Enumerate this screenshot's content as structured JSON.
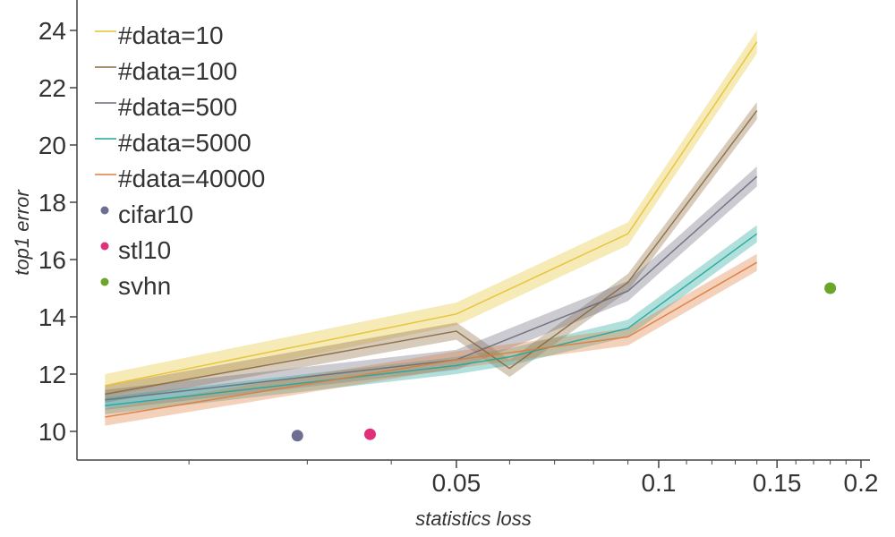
{
  "chart_data": {
    "type": "line",
    "xlabel": "statistics loss",
    "ylabel": "top1 error",
    "x_scale": "log",
    "xlim": [
      0.0135,
      0.21
    ],
    "ylim": [
      9.1,
      25
    ],
    "x_ticks": [
      {
        "value": 0.05,
        "label": "0.05"
      },
      {
        "value": 0.1,
        "label": "0.1"
      },
      {
        "value": 0.15,
        "label": "0.15"
      },
      {
        "value": 0.2,
        "label": "0.2"
      }
    ],
    "x_minor_ticks": [
      0.02,
      0.03,
      0.04,
      0.06,
      0.07,
      0.08,
      0.09,
      0.11,
      0.12,
      0.13,
      0.14,
      0.16,
      0.17,
      0.18,
      0.19
    ],
    "y_ticks": [
      {
        "value": 10,
        "label": "10"
      },
      {
        "value": 12,
        "label": "12"
      },
      {
        "value": 14,
        "label": "14"
      },
      {
        "value": 16,
        "label": "16"
      },
      {
        "value": 18,
        "label": "18"
      },
      {
        "value": 20,
        "label": "20"
      },
      {
        "value": 22,
        "label": "22"
      },
      {
        "value": 24,
        "label": "24"
      }
    ],
    "x": [
      0.015,
      0.05,
      0.06,
      0.09,
      0.14
    ],
    "series": [
      {
        "name": "#data=10",
        "color": "#e5c230",
        "values": [
          11.6,
          14.1,
          null,
          16.9,
          23.6
        ],
        "band": 0.4
      },
      {
        "name": "#data=100",
        "color": "#8b6a3e",
        "values": [
          11.3,
          13.5,
          12.2,
          15.2,
          21.2
        ],
        "band": 0.3
      },
      {
        "name": "#data=500",
        "color": "#6b6b7b",
        "values": [
          11.1,
          12.5,
          null,
          14.9,
          18.9
        ],
        "band": 0.35
      },
      {
        "name": "#data=5000",
        "color": "#1fa79a",
        "values": [
          10.9,
          12.3,
          12.6,
          13.6,
          16.9
        ],
        "band": 0.3
      },
      {
        "name": "#data=40000",
        "color": "#e07a3c",
        "values": [
          10.5,
          12.5,
          null,
          13.3,
          15.9
        ],
        "band": 0.3
      }
    ],
    "points": [
      {
        "name": "cifar10",
        "color": "#6e6e95",
        "x": 0.029,
        "y": 9.85
      },
      {
        "name": "stl10",
        "color": "#e0307a",
        "x": 0.0372,
        "y": 9.9
      },
      {
        "name": "svhn",
        "color": "#6aa62a",
        "x": 0.18,
        "y": 15.0
      }
    ],
    "legend": "top-left",
    "grid": false
  }
}
